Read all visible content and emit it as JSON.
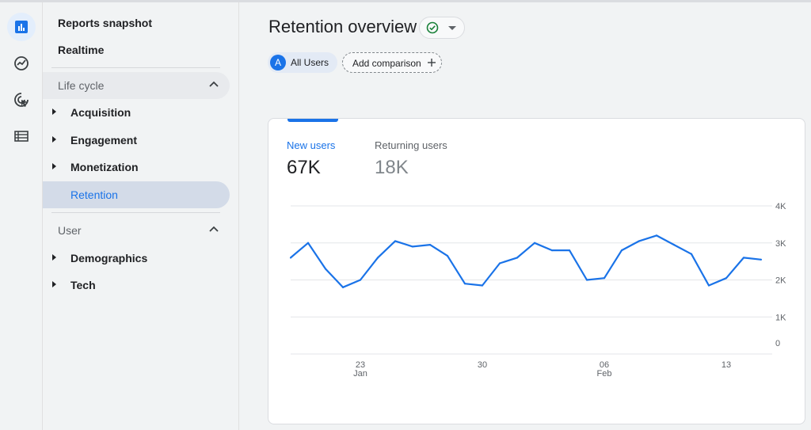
{
  "nav": {
    "reports_snapshot": "Reports snapshot",
    "realtime": "Realtime",
    "lifecycle": {
      "title": "Life cycle",
      "items": [
        "Acquisition",
        "Engagement",
        "Monetization",
        "Retention"
      ]
    },
    "user": {
      "title": "User",
      "items": [
        "Demographics",
        "Tech"
      ]
    },
    "active_item": "Retention"
  },
  "rail_icons": [
    "bar-chart-icon",
    "trending-icon",
    "cursor-target-icon",
    "list-icon"
  ],
  "header": {
    "title": "Retention overview"
  },
  "chips": {
    "audience_avatar": "A",
    "audience": "All Users",
    "add_comparison": "Add comparison"
  },
  "card": {
    "metrics": [
      {
        "label": "New users",
        "value": "67K"
      },
      {
        "label": "Returning users",
        "value": "18K"
      }
    ]
  },
  "colors": {
    "accent": "#1a73e8",
    "selected_nav": "#d3dbe8",
    "success": "#188038"
  },
  "chart_data": {
    "type": "line",
    "x": [
      "Jan 19",
      "Jan 20",
      "Jan 21",
      "Jan 22",
      "Jan 23",
      "Jan 24",
      "Jan 25",
      "Jan 26",
      "Jan 27",
      "Jan 28",
      "Jan 29",
      "Jan 30",
      "Jan 31",
      "Feb 01",
      "Feb 02",
      "Feb 03",
      "Feb 04",
      "Feb 05",
      "Feb 06",
      "Feb 07",
      "Feb 08",
      "Feb 09",
      "Feb 10",
      "Feb 11",
      "Feb 12",
      "Feb 13",
      "Feb 14",
      "Feb 15"
    ],
    "series": [
      {
        "values": [
          2600,
          3000,
          2300,
          1800,
          2000,
          2600,
          3050,
          2900,
          2950,
          2650,
          1900,
          1850,
          2450,
          2600,
          3000,
          2800,
          2800,
          2000,
          2050,
          2800,
          3050,
          3200,
          2950,
          2700,
          1850,
          2050,
          2600,
          2550
        ]
      }
    ],
    "ylim": [
      0,
      4000
    ],
    "yticks": [
      "4K",
      "3K",
      "2K",
      "1K",
      "0"
    ],
    "xticks": [
      {
        "day": "23",
        "month": "Jan"
      },
      {
        "day": "30",
        "month": ""
      },
      {
        "day": "06",
        "month": "Feb"
      },
      {
        "day": "13",
        "month": ""
      }
    ],
    "grid": true
  }
}
